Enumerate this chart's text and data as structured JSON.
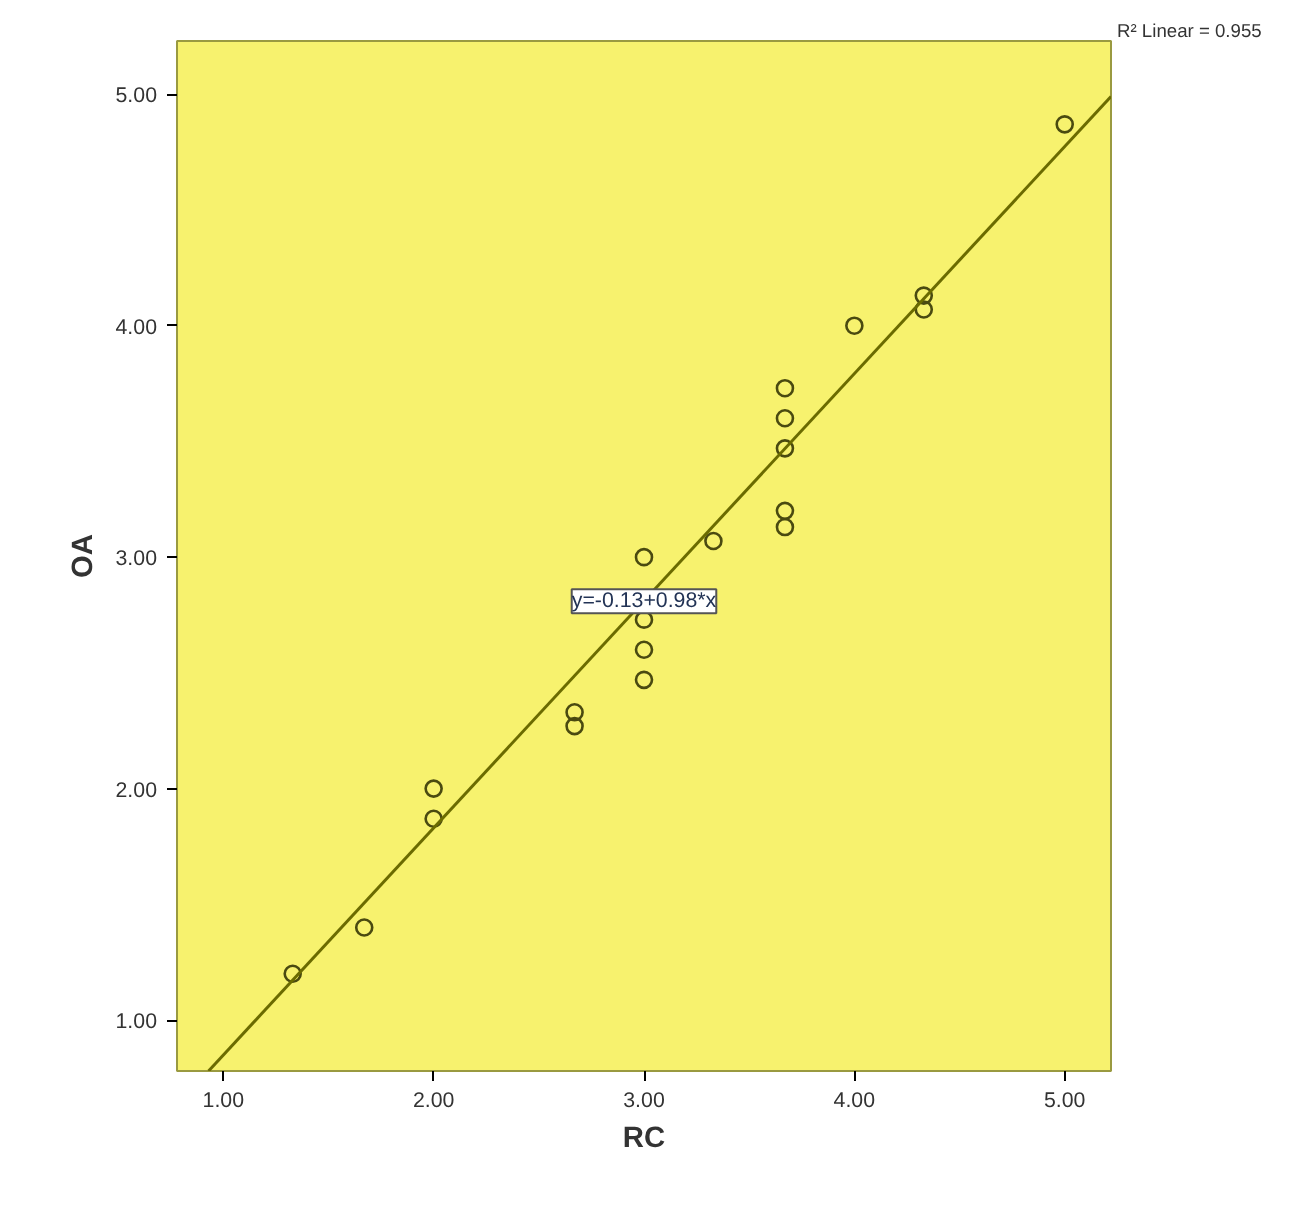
{
  "chart_data": {
    "type": "scatter",
    "xlabel": "RC",
    "ylabel": "OA",
    "xlim": [
      0.78,
      5.22
    ],
    "ylim": [
      0.78,
      5.23
    ],
    "xticks": [
      {
        "value": 1,
        "label": "1.00"
      },
      {
        "value": 2,
        "label": "2.00"
      },
      {
        "value": 3,
        "label": "3.00"
      },
      {
        "value": 4,
        "label": "4.00"
      },
      {
        "value": 5,
        "label": "5.00"
      }
    ],
    "yticks": [
      {
        "value": 1,
        "label": "1.00"
      },
      {
        "value": 2,
        "label": "2.00"
      },
      {
        "value": 3,
        "label": "3.00"
      },
      {
        "value": 4,
        "label": "4.00"
      },
      {
        "value": 5,
        "label": "5.00"
      }
    ],
    "grid": false,
    "marker": "circle",
    "series": [
      {
        "color": "#4a4a10",
        "x": [
          1.33,
          1.67,
          2,
          2,
          2.67,
          2.67,
          3,
          3,
          3,
          3,
          3.33,
          3.67,
          3.67,
          3.67,
          3.67,
          3.67,
          4,
          4.33,
          4.33,
          5
        ],
        "values": [
          1.2,
          1.4,
          2.0,
          1.87,
          2.33,
          2.27,
          3.0,
          2.73,
          2.6,
          2.47,
          3.07,
          3.73,
          3.6,
          3.47,
          3.2,
          3.13,
          4.0,
          4.13,
          4.07,
          4.87
        ]
      },
      {
        "type": "line",
        "color": "#6b6b00",
        "marker": "none",
        "x": [
          0.93,
          5.22
        ],
        "values": [
          0.78,
          4.99
        ]
      }
    ],
    "annotations": [
      {
        "text": "y=-0.13+0.98*x",
        "x": 3,
        "y": 2.81
      },
      "R² Linear = 0.955"
    ]
  }
}
